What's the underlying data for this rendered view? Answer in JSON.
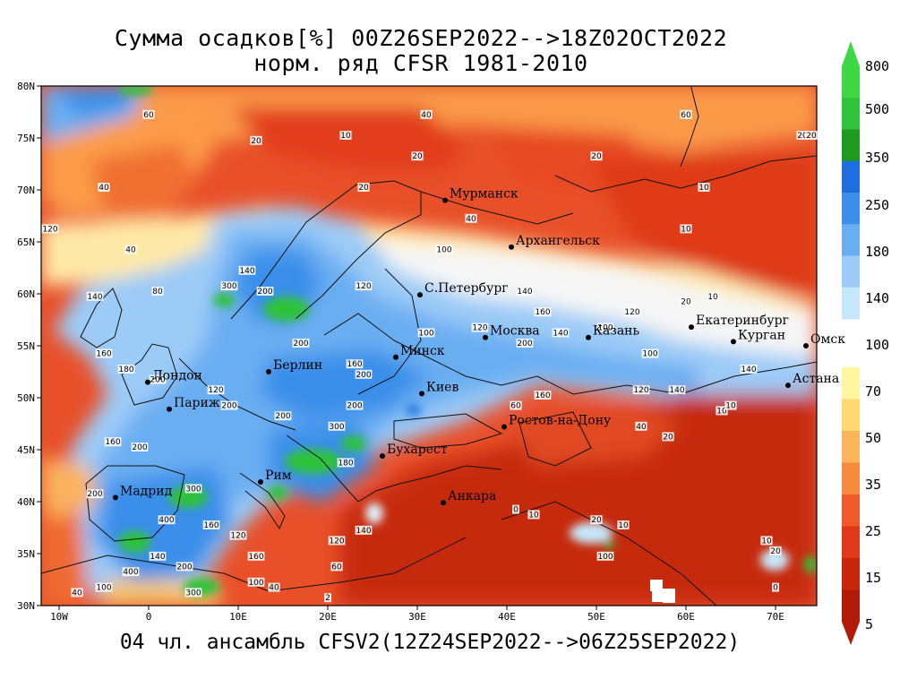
{
  "title_line1": "Сумма осадков[%] 00Z26SEP2022-->18Z02OCT2022",
  "title_line2": "норм. ряд CFSR 1981-2010",
  "footer": "04 чл. ансамбль CFSV2(12Z24SEP2022-->06Z25SEP2022)",
  "axes": {
    "lon_ticks": [
      "10W",
      "0",
      "10E",
      "20E",
      "30E",
      "40E",
      "50E",
      "60E",
      "70E"
    ],
    "lat_ticks": [
      "80N",
      "75N",
      "70N",
      "65N",
      "60N",
      "55N",
      "50N",
      "45N",
      "40N",
      "35N",
      "30N"
    ]
  },
  "colorbar": {
    "labels": [
      "800",
      "500",
      "350",
      "250",
      "180",
      "140",
      "100",
      "70",
      "50",
      "35",
      "25",
      "15",
      "5"
    ],
    "colors": [
      "#3fd845",
      "#2fc23a",
      "#1f9a20",
      "#1d6fe0",
      "#3a8fea",
      "#6aaef2",
      "#9ccbf7",
      "#c6e8fa",
      "#fff6a0",
      "#ffd870",
      "#fdb45a",
      "#f88a3e",
      "#ef5a28",
      "#e03818",
      "#c8250d",
      "#b21a08"
    ]
  },
  "cities": [
    {
      "name": "Мурманск",
      "lon": 33.1,
      "lat": 69.0
    },
    {
      "name": "Архангельск",
      "lon": 40.5,
      "lat": 64.5
    },
    {
      "name": "С.Петербург",
      "lon": 30.3,
      "lat": 59.9
    },
    {
      "name": "Екатеринбург",
      "lon": 60.6,
      "lat": 56.8
    },
    {
      "name": "Москва",
      "lon": 37.6,
      "lat": 55.8
    },
    {
      "name": "Казань",
      "lon": 49.1,
      "lat": 55.8
    },
    {
      "name": "Курган",
      "lon": 65.3,
      "lat": 55.4
    },
    {
      "name": "Омск",
      "lon": 73.4,
      "lat": 55.0
    },
    {
      "name": "Минск",
      "lon": 27.6,
      "lat": 53.9
    },
    {
      "name": "Берлин",
      "lon": 13.4,
      "lat": 52.5
    },
    {
      "name": "Лондон",
      "lon": -0.1,
      "lat": 51.5
    },
    {
      "name": "Астана",
      "lon": 71.4,
      "lat": 51.2
    },
    {
      "name": "Киев",
      "lon": 30.5,
      "lat": 50.4
    },
    {
      "name": "Париж",
      "lon": 2.3,
      "lat": 48.9
    },
    {
      "name": "Ростов-на-Дону",
      "lon": 39.7,
      "lat": 47.2
    },
    {
      "name": "Бухарест",
      "lon": 26.1,
      "lat": 44.4
    },
    {
      "name": "Рим",
      "lon": 12.5,
      "lat": 41.9
    },
    {
      "name": "Мадрид",
      "lon": -3.7,
      "lat": 40.4
    },
    {
      "name": "Анкара",
      "lon": 32.9,
      "lat": 39.9
    }
  ],
  "contour_values": [
    {
      "v": "60",
      "lon": 0,
      "lat": 77
    },
    {
      "v": "40",
      "lon": 31,
      "lat": 77
    },
    {
      "v": "60",
      "lon": 60,
      "lat": 77
    },
    {
      "v": "20",
      "lon": 12,
      "lat": 74.5
    },
    {
      "v": "10",
      "lon": 22,
      "lat": 75
    },
    {
      "v": "20",
      "lon": 30,
      "lat": 73
    },
    {
      "v": "20",
      "lon": 50,
      "lat": 73
    },
    {
      "v": "20",
      "lon": 73,
      "lat": 75
    },
    {
      "v": "40",
      "lon": -5,
      "lat": 70
    },
    {
      "v": "20",
      "lon": 24,
      "lat": 70
    },
    {
      "v": "10",
      "lon": 62,
      "lat": 70
    },
    {
      "v": "40",
      "lon": 36,
      "lat": 67
    },
    {
      "v": "10",
      "lon": 60,
      "lat": 66
    },
    {
      "v": "120",
      "lon": -11,
      "lat": 66
    },
    {
      "v": "40",
      "lon": -2,
      "lat": 64
    },
    {
      "v": "100",
      "lon": 33,
      "lat": 64
    },
    {
      "v": "140",
      "lon": 11,
      "lat": 62
    },
    {
      "v": "300",
      "lon": 9,
      "lat": 60.5
    },
    {
      "v": "200",
      "lon": 13,
      "lat": 60
    },
    {
      "v": "80",
      "lon": 1,
      "lat": 60
    },
    {
      "v": "140",
      "lon": -6,
      "lat": 59.5
    },
    {
      "v": "120",
      "lon": 24,
      "lat": 60.5
    },
    {
      "v": "140",
      "lon": 42,
      "lat": 60
    },
    {
      "v": "20",
      "lon": 60,
      "lat": 59
    },
    {
      "v": "10",
      "lon": 63,
      "lat": 59.5
    },
    {
      "v": "160",
      "lon": 44,
      "lat": 58
    },
    {
      "v": "120",
      "lon": 54,
      "lat": 58
    },
    {
      "v": "100",
      "lon": 31,
      "lat": 56
    },
    {
      "v": "120",
      "lon": 37,
      "lat": 56.5
    },
    {
      "v": "140",
      "lon": 46,
      "lat": 56
    },
    {
      "v": "100",
      "lon": 51,
      "lat": 56.5
    },
    {
      "v": "200",
      "lon": 17,
      "lat": 55
    },
    {
      "v": "200",
      "lon": 42,
      "lat": 55
    },
    {
      "v": "160",
      "lon": -5,
      "lat": 54
    },
    {
      "v": "160",
      "lon": 23,
      "lat": 53
    },
    {
      "v": "200",
      "lon": 24,
      "lat": 52
    },
    {
      "v": "100",
      "lon": 56,
      "lat": 54
    },
    {
      "v": "180",
      "lon": -2.5,
      "lat": 52.5
    },
    {
      "v": "140",
      "lon": 67,
      "lat": 52.5
    },
    {
      "v": "200",
      "lon": 1,
      "lat": 51.5
    },
    {
      "v": "120",
      "lon": 7.5,
      "lat": 50.5
    },
    {
      "v": "160",
      "lon": 44,
      "lat": 50
    },
    {
      "v": "140",
      "lon": 59,
      "lat": 50.5
    },
    {
      "v": "120",
      "lon": 55,
      "lat": 50.5
    },
    {
      "v": "60",
      "lon": 41,
      "lat": 49
    },
    {
      "v": "200",
      "lon": 9,
      "lat": 49
    },
    {
      "v": "200",
      "lon": 15,
      "lat": 48
    },
    {
      "v": "200",
      "lon": 23,
      "lat": 49
    },
    {
      "v": "10",
      "lon": 64,
      "lat": 48.5
    },
    {
      "v": "300",
      "lon": 21,
      "lat": 47
    },
    {
      "v": "40",
      "lon": 55,
      "lat": 47
    },
    {
      "v": "20",
      "lon": 58,
      "lat": 46
    },
    {
      "v": "160",
      "lon": -4,
      "lat": 45.5
    },
    {
      "v": "200",
      "lon": -1,
      "lat": 45
    },
    {
      "v": "180",
      "lon": 22,
      "lat": 43.5
    },
    {
      "v": "300",
      "lon": 5,
      "lat": 41
    },
    {
      "v": "200",
      "lon": -6,
      "lat": 40.5
    },
    {
      "v": "400",
      "lon": 2,
      "lat": 38
    },
    {
      "v": "160",
      "lon": 7,
      "lat": 37.5
    },
    {
      "v": "120",
      "lon": 10,
      "lat": 36.5
    },
    {
      "v": "140",
      "lon": 1,
      "lat": 34.5
    },
    {
      "v": "160",
      "lon": 12,
      "lat": 34.5
    },
    {
      "v": "200",
      "lon": 4,
      "lat": 33.5
    },
    {
      "v": "400",
      "lon": -2,
      "lat": 33
    },
    {
      "v": "40",
      "lon": -8,
      "lat": 31
    },
    {
      "v": "100",
      "lon": -5,
      "lat": 31.5
    },
    {
      "v": "300",
      "lon": 5,
      "lat": 31
    },
    {
      "v": "100",
      "lon": 12,
      "lat": 32
    },
    {
      "v": "40",
      "lon": 14,
      "lat": 31.5
    },
    {
      "v": "140",
      "lon": 24,
      "lat": 37
    },
    {
      "v": "120",
      "lon": 21,
      "lat": 36
    },
    {
      "v": "60",
      "lon": 21,
      "lat": 33.5
    },
    {
      "v": "0",
      "lon": 41,
      "lat": 39
    },
    {
      "v": "10",
      "lon": 43,
      "lat": 38.5
    },
    {
      "v": "20",
      "lon": 50,
      "lat": 38
    },
    {
      "v": "10",
      "lon": 53,
      "lat": 37.5
    },
    {
      "v": "100",
      "lon": 51,
      "lat": 34.5
    },
    {
      "v": "10",
      "lon": 69,
      "lat": 36
    },
    {
      "v": "20",
      "lon": 70,
      "lat": 35
    },
    {
      "v": "0",
      "lon": 70,
      "lat": 31.5
    },
    {
      "v": "2",
      "lon": 20,
      "lat": 30.5
    },
    {
      "v": "10",
      "lon": 65,
      "lat": 49
    },
    {
      "v": "20",
      "lon": 74,
      "lat": 75
    }
  ],
  "colorbar_fill_bounds": {
    "top": "800",
    "bottom": "5"
  }
}
